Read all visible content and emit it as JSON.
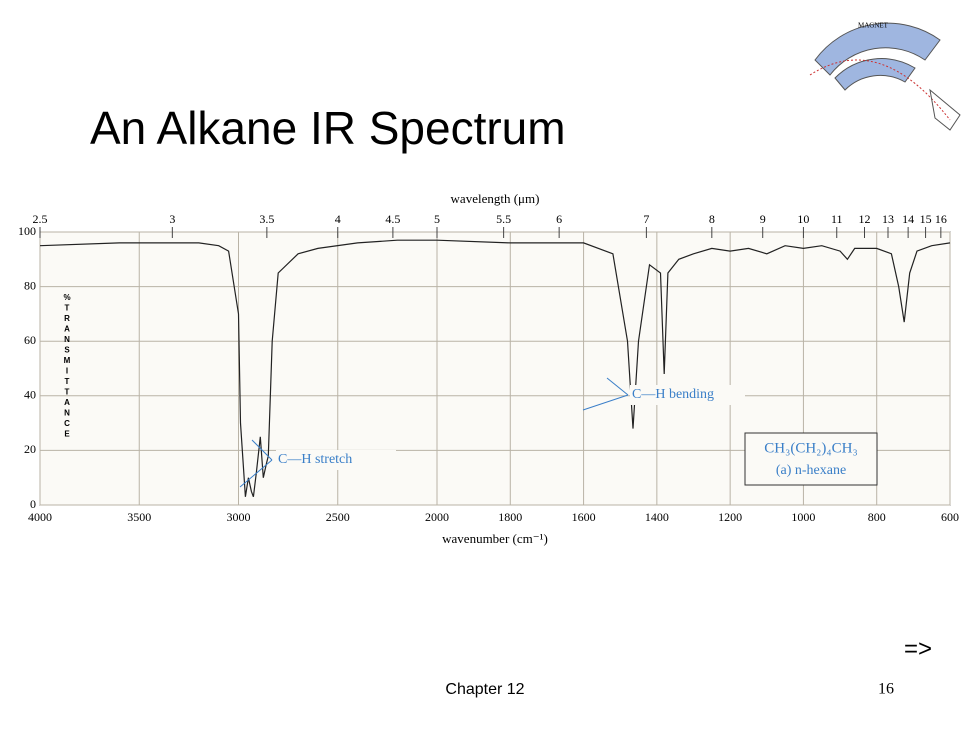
{
  "slide": {
    "title": "An Alkane IR Spectrum",
    "footer": "Chapter 12",
    "page": "16",
    "next": "=>",
    "logo": "MAGNET"
  },
  "chart_data": {
    "type": "line",
    "xlabel": "wavenumber (cm⁻¹)",
    "x2label": "wavelength (μm)",
    "ylabel": "%TRANSMITTANCE",
    "xlim": [
      4000,
      600
    ],
    "xscale_break": 2000,
    "xticks": [
      4000,
      3500,
      3000,
      2500,
      2000,
      1800,
      1600,
      1400,
      1200,
      1000,
      800,
      600
    ],
    "x2ticks": [
      2.5,
      3,
      3.5,
      4,
      4.5,
      5,
      5.5,
      6,
      7,
      8,
      9,
      10,
      11,
      12,
      13,
      14,
      15,
      16
    ],
    "ylim": [
      0,
      100
    ],
    "yticks": [
      0,
      20,
      40,
      60,
      80,
      100
    ],
    "grid": true,
    "series": [
      {
        "name": "n-hexane",
        "color": "#222222",
        "x": [
          4000,
          3600,
          3200,
          3100,
          3050,
          3000,
          2990,
          2965,
          2950,
          2935,
          2925,
          2910,
          2890,
          2875,
          2860,
          2850,
          2830,
          2800,
          2700,
          2600,
          2400,
          2200,
          2000,
          1800,
          1600,
          1520,
          1480,
          1465,
          1450,
          1420,
          1390,
          1380,
          1370,
          1340,
          1300,
          1250,
          1200,
          1150,
          1100,
          1050,
          1000,
          950,
          900,
          880,
          860,
          800,
          760,
          740,
          725,
          710,
          690,
          650,
          600
        ],
        "values": [
          95,
          96,
          96,
          95,
          93,
          70,
          30,
          3,
          10,
          5,
          3,
          12,
          25,
          10,
          15,
          18,
          60,
          85,
          92,
          94,
          96,
          97,
          97,
          96,
          96,
          92,
          60,
          28,
          60,
          88,
          85,
          48,
          85,
          90,
          92,
          94,
          93,
          94,
          92,
          95,
          94,
          95,
          93,
          90,
          94,
          94,
          92,
          80,
          67,
          85,
          93,
          95,
          96
        ]
      }
    ],
    "annotations": [
      "C—H stretch",
      "C—H bending"
    ],
    "compound": [
      "CH₃(CH₂)₄CH₃",
      "(a) n-hexane"
    ]
  }
}
